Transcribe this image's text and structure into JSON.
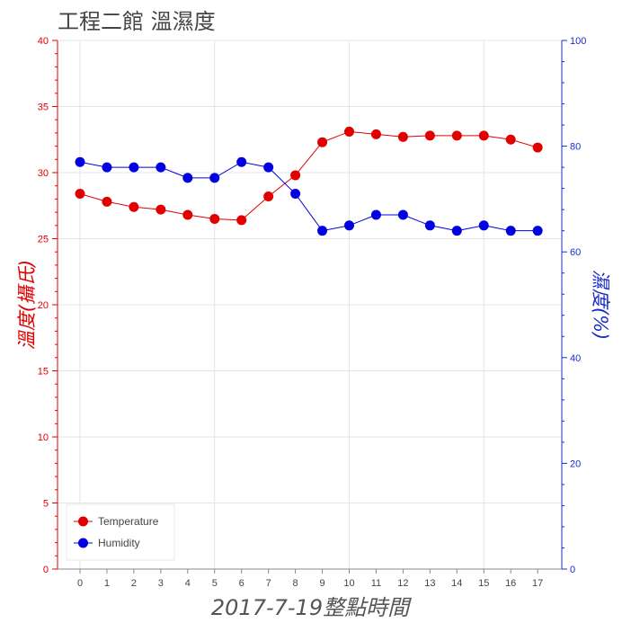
{
  "chart_data": {
    "type": "line",
    "title": "工程二館 溫濕度",
    "xlabel": "2017-7-19整點時間",
    "ylabel_left": "溫度(攝氏)",
    "ylabel_right": "濕度(%)",
    "x": [
      0,
      1,
      2,
      3,
      4,
      5,
      6,
      7,
      8,
      9,
      10,
      11,
      12,
      13,
      14,
      15,
      16,
      17
    ],
    "y_left_lim": [
      0,
      40
    ],
    "y_right_lim": [
      0,
      100
    ],
    "y_left_ticks": [
      0,
      5,
      10,
      15,
      20,
      25,
      30,
      35,
      40
    ],
    "y_right_ticks": [
      0,
      20,
      40,
      60,
      80,
      100
    ],
    "grid": true,
    "legend_position": "bottom-left",
    "series": [
      {
        "name": "Temperature",
        "axis": "left",
        "color": "#e00000",
        "values": [
          28.4,
          27.8,
          27.4,
          27.2,
          26.8,
          26.5,
          26.4,
          28.2,
          29.8,
          32.3,
          33.1,
          32.9,
          32.7,
          32.8,
          32.8,
          32.8,
          32.5,
          31.9
        ]
      },
      {
        "name": "Humidity",
        "axis": "right",
        "color": "#0000e0",
        "values": [
          77,
          76,
          76,
          76,
          74,
          74,
          77,
          76,
          71,
          64,
          65,
          67,
          67,
          65,
          64,
          65,
          64,
          64
        ]
      }
    ]
  }
}
